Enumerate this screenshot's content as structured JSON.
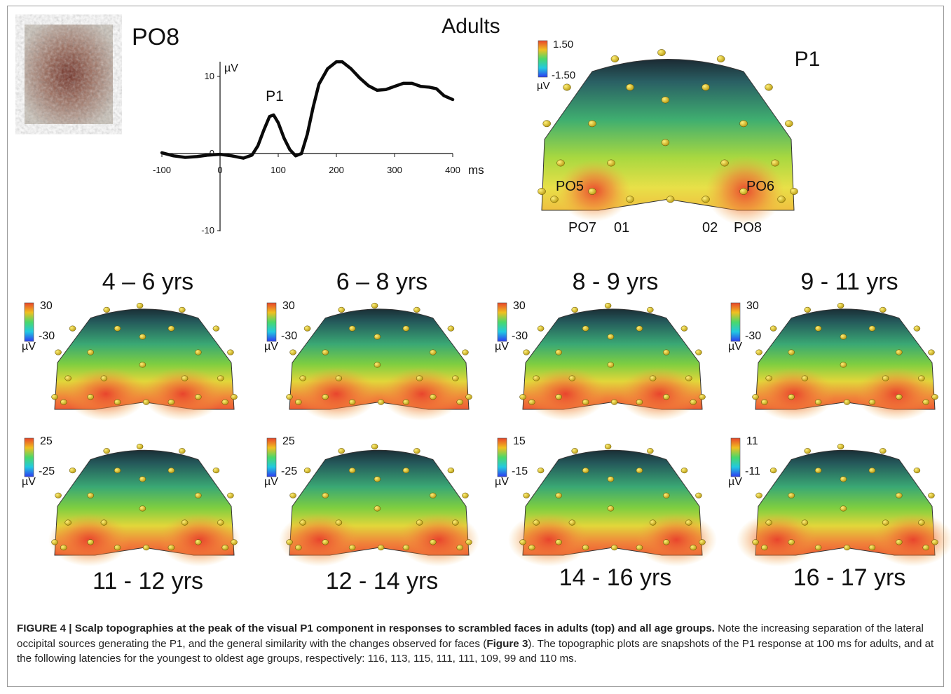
{
  "adults": {
    "title": "Adults",
    "electrode_label": "PO8",
    "map_label": "P1",
    "colorbar_max": "1.50",
    "colorbar_min": "-1.50",
    "unit": "µV",
    "electrodes": [
      "PO5",
      "PO6",
      "PO7",
      "01",
      "02",
      "PO8"
    ]
  },
  "waveform": {
    "unit_label": "µV",
    "x_unit": "ms",
    "peak_label": "P1",
    "x_ticks": [
      "-100",
      "0",
      "100",
      "200",
      "300",
      "400"
    ],
    "y_ticks": [
      "10",
      "0",
      "-10"
    ],
    "x_range": [
      -100,
      400
    ],
    "y_range": [
      -10,
      10
    ],
    "points": [
      [
        -100,
        0.1
      ],
      [
        -80,
        -0.3
      ],
      [
        -60,
        -0.5
      ],
      [
        -40,
        -0.4
      ],
      [
        -20,
        -0.2
      ],
      [
        0,
        -0.1
      ],
      [
        20,
        -0.3
      ],
      [
        40,
        -0.6
      ],
      [
        55,
        -0.2
      ],
      [
        65,
        1.0
      ],
      [
        75,
        3.0
      ],
      [
        85,
        4.8
      ],
      [
        92,
        5.0
      ],
      [
        100,
        4.0
      ],
      [
        110,
        2.0
      ],
      [
        120,
        0.5
      ],
      [
        130,
        -0.3
      ],
      [
        140,
        0.0
      ],
      [
        150,
        2.5
      ],
      [
        160,
        6.0
      ],
      [
        170,
        9.0
      ],
      [
        185,
        11.0
      ],
      [
        200,
        11.9
      ],
      [
        210,
        11.9
      ],
      [
        225,
        11.0
      ],
      [
        240,
        9.8
      ],
      [
        255,
        8.8
      ],
      [
        270,
        8.2
      ],
      [
        285,
        8.3
      ],
      [
        300,
        8.7
      ],
      [
        315,
        9.1
      ],
      [
        330,
        9.1
      ],
      [
        345,
        8.7
      ],
      [
        360,
        8.6
      ],
      [
        372,
        8.4
      ],
      [
        385,
        7.5
      ],
      [
        400,
        7.0
      ]
    ]
  },
  "age_groups": [
    {
      "label": "4 – 6 yrs",
      "max": "30",
      "min": "-30",
      "unit": "µV"
    },
    {
      "label": "6 – 8 yrs",
      "max": "30",
      "min": "-30",
      "unit": "µV"
    },
    {
      "label": "8 - 9 yrs",
      "max": "30",
      "min": "-30",
      "unit": "µV"
    },
    {
      "label": "9 - 11 yrs",
      "max": "30",
      "min": "-30",
      "unit": "µV"
    },
    {
      "label": "11 - 12 yrs",
      "max": "25",
      "min": "-25",
      "unit": "µV"
    },
    {
      "label": "12 - 14 yrs",
      "max": "25",
      "min": "-25",
      "unit": "µV"
    },
    {
      "label": "14 - 16 yrs",
      "max": "15",
      "min": "-15",
      "unit": "µV"
    },
    {
      "label": "16 - 17 yrs",
      "max": "11",
      "min": "-11",
      "unit": "µV"
    }
  ],
  "caption": {
    "bold": "FIGURE 4 | Scalp topographies at the peak of the visual P1 component in responses to scrambled faces in adults (top) and all age groups.",
    "text1": " Note the increasing separation of the lateral occipital sources generating the P1, and the general similarity with the changes observed for faces (",
    "ref": "Figure 3",
    "text2": "). The topographic plots are snapshots of the P1 response at 100 ms for adults, and at the following latencies for the youngest to oldest age groups, respectively: 116, 113, 115, 111, 111, 109, 99 and 110 ms."
  }
}
